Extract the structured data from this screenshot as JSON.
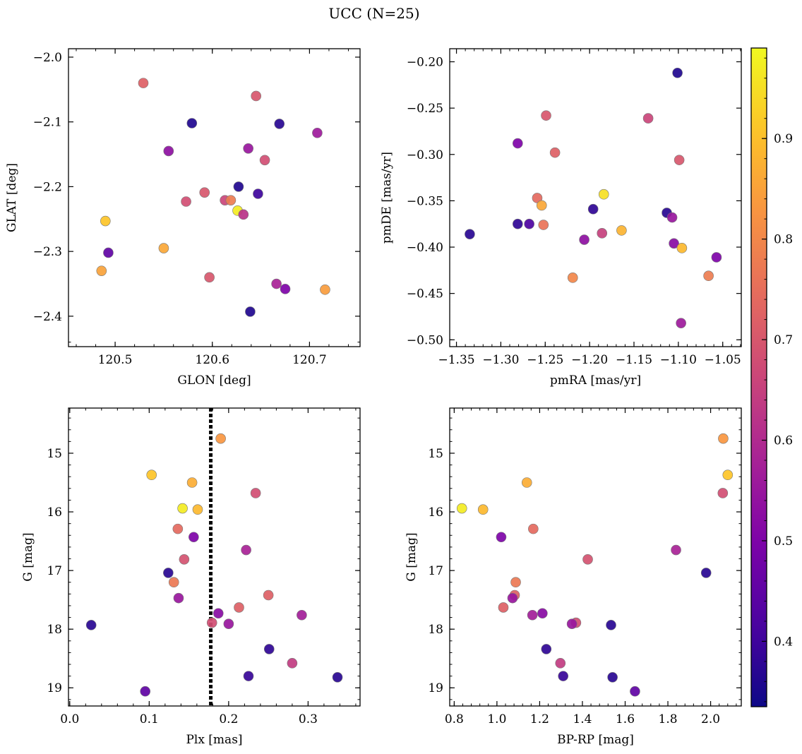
{
  "figure": {
    "title": "UCC (N=25)"
  },
  "colorbar": {
    "cmap": "plasma",
    "range": [
      0.335,
      0.99
    ],
    "ticks": [
      0.4,
      0.5,
      0.6,
      0.7,
      0.8,
      0.9
    ],
    "tick_labels": [
      "0.4",
      "0.5",
      "0.6",
      "0.7",
      "0.8",
      "0.9"
    ]
  },
  "chart_data": [
    {
      "type": "scatter",
      "xlabel": "GLON [deg]",
      "ylabel": "GLAT [deg]",
      "xlim": [
        120.452,
        120.752
      ],
      "ylim": [
        -2.447,
        -1.987
      ],
      "xticks": [
        120.5,
        120.6,
        120.7
      ],
      "xtick_labels": [
        "120.5",
        "120.6",
        "120.7"
      ],
      "yticks": [
        -2.0,
        -2.1,
        -2.2,
        -2.3,
        -2.4
      ],
      "ytick_labels": [
        "−2.0",
        "−2.1",
        "−2.2",
        "−2.3",
        "−2.4"
      ],
      "points": [
        {
          "x": 120.529,
          "y": -2.04,
          "c": 0.72
        },
        {
          "x": 120.645,
          "y": -2.06,
          "c": 0.7
        },
        {
          "x": 120.579,
          "y": -2.102,
          "c": 0.36
        },
        {
          "x": 120.669,
          "y": -2.103,
          "c": 0.37
        },
        {
          "x": 120.708,
          "y": -2.117,
          "c": 0.56
        },
        {
          "x": 120.637,
          "y": -2.141,
          "c": 0.55
        },
        {
          "x": 120.555,
          "y": -2.145,
          "c": 0.53
        },
        {
          "x": 120.654,
          "y": -2.159,
          "c": 0.68
        },
        {
          "x": 120.627,
          "y": -2.2,
          "c": 0.36
        },
        {
          "x": 120.647,
          "y": -2.211,
          "c": 0.4
        },
        {
          "x": 120.592,
          "y": -2.209,
          "c": 0.7
        },
        {
          "x": 120.573,
          "y": -2.223,
          "c": 0.68
        },
        {
          "x": 120.613,
          "y": -2.221,
          "c": 0.66
        },
        {
          "x": 120.619,
          "y": -2.221,
          "c": 0.78
        },
        {
          "x": 120.626,
          "y": -2.237,
          "c": 0.97
        },
        {
          "x": 120.632,
          "y": -2.243,
          "c": 0.62
        },
        {
          "x": 120.49,
          "y": -2.253,
          "c": 0.91
        },
        {
          "x": 120.55,
          "y": -2.295,
          "c": 0.86
        },
        {
          "x": 120.493,
          "y": -2.302,
          "c": 0.45
        },
        {
          "x": 120.486,
          "y": -2.33,
          "c": 0.85
        },
        {
          "x": 120.597,
          "y": -2.34,
          "c": 0.7
        },
        {
          "x": 120.666,
          "y": -2.35,
          "c": 0.58
        },
        {
          "x": 120.675,
          "y": -2.358,
          "c": 0.5
        },
        {
          "x": 120.716,
          "y": -2.359,
          "c": 0.84
        },
        {
          "x": 120.639,
          "y": -2.393,
          "c": 0.36
        }
      ]
    },
    {
      "type": "scatter",
      "xlabel": "pmRA [mas/yr]",
      "ylabel": "pmDE [mas/yr]",
      "xlim": [
        -1.3576,
        -1.0291
      ],
      "ylim": [
        -0.5074,
        -0.1859
      ],
      "xticks": [
        -1.35,
        -1.3,
        -1.25,
        -1.2,
        -1.15,
        -1.1,
        -1.05
      ],
      "xtick_labels": [
        "−1.35",
        "−1.30",
        "−1.25",
        "−1.20",
        "−1.15",
        "−1.10",
        "−1.05"
      ],
      "yticks": [
        -0.2,
        -0.25,
        -0.3,
        -0.35,
        -0.4,
        -0.45,
        -0.5
      ],
      "ytick_labels": [
        "−0.20",
        "−0.25",
        "−0.30",
        "−0.35",
        "−0.40",
        "−0.45",
        "−0.50"
      ],
      "points": [
        {
          "x": -1.101,
          "y": -0.212,
          "c": 0.36
        },
        {
          "x": -1.249,
          "y": -0.258,
          "c": 0.7
        },
        {
          "x": -1.134,
          "y": -0.261,
          "c": 0.66
        },
        {
          "x": -1.281,
          "y": -0.288,
          "c": 0.5
        },
        {
          "x": -1.239,
          "y": -0.298,
          "c": 0.72
        },
        {
          "x": -1.099,
          "y": -0.306,
          "c": 0.7
        },
        {
          "x": -1.184,
          "y": -0.343,
          "c": 0.95
        },
        {
          "x": -1.259,
          "y": -0.347,
          "c": 0.74
        },
        {
          "x": -1.254,
          "y": -0.355,
          "c": 0.86
        },
        {
          "x": -1.196,
          "y": -0.359,
          "c": 0.38
        },
        {
          "x": -1.113,
          "y": -0.363,
          "c": 0.37
        },
        {
          "x": -1.107,
          "y": -0.368,
          "c": 0.55
        },
        {
          "x": -1.281,
          "y": -0.375,
          "c": 0.38
        },
        {
          "x": -1.268,
          "y": -0.375,
          "c": 0.42
        },
        {
          "x": -1.252,
          "y": -0.376,
          "c": 0.76
        },
        {
          "x": -1.164,
          "y": -0.382,
          "c": 0.88
        },
        {
          "x": -1.335,
          "y": -0.386,
          "c": 0.37
        },
        {
          "x": -1.186,
          "y": -0.385,
          "c": 0.65
        },
        {
          "x": -1.206,
          "y": -0.392,
          "c": 0.53
        },
        {
          "x": -1.105,
          "y": -0.396,
          "c": 0.52
        },
        {
          "x": -1.096,
          "y": -0.401,
          "c": 0.89
        },
        {
          "x": -1.057,
          "y": -0.411,
          "c": 0.5
        },
        {
          "x": -1.066,
          "y": -0.431,
          "c": 0.78
        },
        {
          "x": -1.219,
          "y": -0.433,
          "c": 0.8
        },
        {
          "x": -1.097,
          "y": -0.482,
          "c": 0.56
        }
      ]
    },
    {
      "type": "scatter",
      "xlabel": "Plx [mas]",
      "ylabel": "G [mag]",
      "xlim": [
        -0.0016,
        0.3654
      ],
      "ylim": [
        19.31,
        14.23
      ],
      "xticks": [
        0.0,
        0.1,
        0.2,
        0.3
      ],
      "xtick_labels": [
        "0.0",
        "0.1",
        "0.2",
        "0.3"
      ],
      "yticks": [
        15,
        16,
        17,
        18,
        19
      ],
      "ytick_labels": [
        "15",
        "16",
        "17",
        "18",
        "19"
      ],
      "vline": 0.1775,
      "points": [
        {
          "x": 0.19,
          "y": 14.75,
          "c": 0.83
        },
        {
          "x": 0.103,
          "y": 15.37,
          "c": 0.91
        },
        {
          "x": 0.154,
          "y": 15.5,
          "c": 0.87
        },
        {
          "x": 0.234,
          "y": 15.68,
          "c": 0.68
        },
        {
          "x": 0.142,
          "y": 15.94,
          "c": 0.97
        },
        {
          "x": 0.161,
          "y": 15.96,
          "c": 0.89
        },
        {
          "x": 0.136,
          "y": 16.29,
          "c": 0.74
        },
        {
          "x": 0.156,
          "y": 16.43,
          "c": 0.5
        },
        {
          "x": 0.222,
          "y": 16.65,
          "c": 0.58
        },
        {
          "x": 0.144,
          "y": 16.81,
          "c": 0.69
        },
        {
          "x": 0.124,
          "y": 17.04,
          "c": 0.37
        },
        {
          "x": 0.131,
          "y": 17.2,
          "c": 0.77
        },
        {
          "x": 0.25,
          "y": 17.42,
          "c": 0.72
        },
        {
          "x": 0.137,
          "y": 17.47,
          "c": 0.55
        },
        {
          "x": 0.213,
          "y": 17.63,
          "c": 0.72
        },
        {
          "x": 0.187,
          "y": 17.73,
          "c": 0.52
        },
        {
          "x": 0.292,
          "y": 17.76,
          "c": 0.57
        },
        {
          "x": 0.179,
          "y": 17.89,
          "c": 0.68
        },
        {
          "x": 0.2,
          "y": 17.91,
          "c": 0.55
        },
        {
          "x": 0.027,
          "y": 17.93,
          "c": 0.37
        },
        {
          "x": 0.251,
          "y": 18.34,
          "c": 0.38
        },
        {
          "x": 0.28,
          "y": 18.58,
          "c": 0.64
        },
        {
          "x": 0.225,
          "y": 18.8,
          "c": 0.39
        },
        {
          "x": 0.337,
          "y": 18.82,
          "c": 0.37
        },
        {
          "x": 0.095,
          "y": 19.06,
          "c": 0.45
        }
      ]
    },
    {
      "type": "scatter",
      "xlabel": "BP-RP [mag]",
      "ylabel": "G [mag]",
      "xlim": [
        0.779,
        2.1435
      ],
      "ylim": [
        19.31,
        14.23
      ],
      "xticks": [
        0.8,
        1.0,
        1.2,
        1.4,
        1.6,
        1.8,
        2.0
      ],
      "xtick_labels": [
        "0.8",
        "1.0",
        "1.2",
        "1.4",
        "1.6",
        "1.8",
        "2.0"
      ],
      "yticks": [
        15,
        16,
        17,
        18,
        19
      ],
      "ytick_labels": [
        "15",
        "16",
        "17",
        "18",
        "19"
      ],
      "points": [
        {
          "x": 2.059,
          "y": 14.75,
          "c": 0.83
        },
        {
          "x": 2.08,
          "y": 15.37,
          "c": 0.91
        },
        {
          "x": 1.14,
          "y": 15.5,
          "c": 0.87
        },
        {
          "x": 2.057,
          "y": 15.68,
          "c": 0.68
        },
        {
          "x": 0.836,
          "y": 15.94,
          "c": 0.97
        },
        {
          "x": 0.935,
          "y": 15.96,
          "c": 0.89
        },
        {
          "x": 1.17,
          "y": 16.29,
          "c": 0.74
        },
        {
          "x": 1.02,
          "y": 16.43,
          "c": 0.5
        },
        {
          "x": 1.838,
          "y": 16.65,
          "c": 0.58
        },
        {
          "x": 1.425,
          "y": 16.81,
          "c": 0.69
        },
        {
          "x": 1.979,
          "y": 17.04,
          "c": 0.37
        },
        {
          "x": 1.088,
          "y": 17.2,
          "c": 0.77
        },
        {
          "x": 1.083,
          "y": 17.42,
          "c": 0.72
        },
        {
          "x": 1.073,
          "y": 17.47,
          "c": 0.55
        },
        {
          "x": 1.03,
          "y": 17.63,
          "c": 0.72
        },
        {
          "x": 1.213,
          "y": 17.73,
          "c": 0.52
        },
        {
          "x": 1.166,
          "y": 17.76,
          "c": 0.57
        },
        {
          "x": 1.37,
          "y": 17.89,
          "c": 0.68
        },
        {
          "x": 1.351,
          "y": 17.91,
          "c": 0.55
        },
        {
          "x": 1.534,
          "y": 17.93,
          "c": 0.37
        },
        {
          "x": 1.231,
          "y": 18.34,
          "c": 0.38
        },
        {
          "x": 1.297,
          "y": 18.58,
          "c": 0.64
        },
        {
          "x": 1.31,
          "y": 18.8,
          "c": 0.39
        },
        {
          "x": 1.541,
          "y": 18.82,
          "c": 0.37
        },
        {
          "x": 1.646,
          "y": 19.06,
          "c": 0.45
        }
      ]
    }
  ]
}
